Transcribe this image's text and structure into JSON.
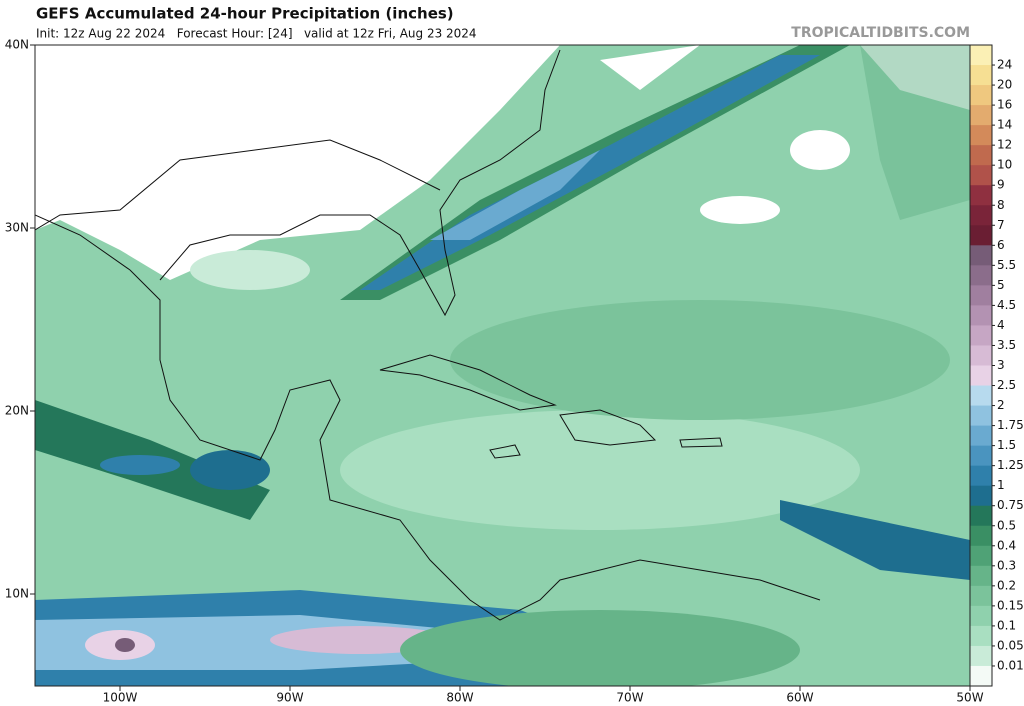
{
  "header": {
    "title": "GEFS Accumulated 24-hour Precipitation (inches)",
    "subtitle": "Init: 12z Aug 22 2024   Forecast Hour: [24]   valid at 12z Fri, Aug 23 2024",
    "brand": "TROPICALTIDBITS.COM"
  },
  "map": {
    "lat_labels": [
      "40N",
      "30N",
      "20N",
      "10N"
    ],
    "lon_labels": [
      "100W",
      "90W",
      "80W",
      "70W",
      "60W",
      "50W"
    ]
  },
  "colorbar": {
    "ticks": [
      24,
      20,
      16,
      14,
      12,
      10,
      9,
      8,
      7,
      6,
      5.5,
      5,
      4.5,
      4,
      3.5,
      3,
      2.5,
      2,
      1.75,
      1.5,
      1.25,
      1,
      0.75,
      0.5,
      0.4,
      0.3,
      0.2,
      0.15,
      0.1,
      0.05,
      0.01
    ],
    "colors": [
      "#fbf0b5",
      "#f6df93",
      "#efc87f",
      "#e3ab6e",
      "#d38a5a",
      "#c06a4e",
      "#b0524a",
      "#8f3040",
      "#7a2439",
      "#6a1e33",
      "#765c77",
      "#8b6d8b",
      "#a07f9f",
      "#b392b2",
      "#c6a6c4",
      "#d7bbd5",
      "#e8d2e6",
      "#b7daee",
      "#8fc2e0",
      "#6aaad0",
      "#4a94bf",
      "#2f80ab",
      "#1e6e8f",
      "#24775a",
      "#3a8f64",
      "#4fa276",
      "#66b489",
      "#7bc39b",
      "#8fd1ad",
      "#a9dfc1",
      "#c9ebd8",
      "#f4faf6"
    ]
  }
}
